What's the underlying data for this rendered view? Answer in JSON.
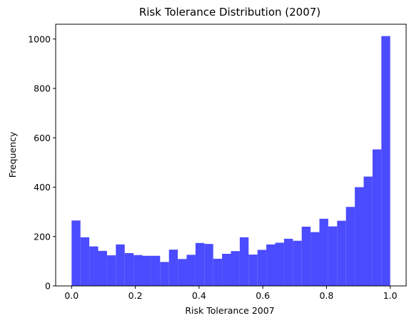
{
  "chart_data": {
    "type": "bar",
    "title": "Risk Tolerance Distribution (2007)",
    "xlabel": "Risk Tolerance 2007",
    "ylabel": "Frequency",
    "xlim": [
      -0.05,
      1.05
    ],
    "ylim": [
      0,
      1060
    ],
    "xticks": [
      0.0,
      0.2,
      0.4,
      0.6,
      0.8,
      1.0
    ],
    "xtick_labels": [
      "0.0",
      "0.2",
      "0.4",
      "0.6",
      "0.8",
      "1.0"
    ],
    "yticks": [
      0,
      200,
      400,
      600,
      800,
      1000
    ],
    "ytick_labels": [
      "0",
      "200",
      "400",
      "600",
      "800",
      "1000"
    ],
    "grid": false,
    "bar_color": "#4B4BFF",
    "bin_start": 0.0,
    "bin_end": 1.0,
    "values": [
      265,
      197,
      160,
      142,
      124,
      168,
      133,
      125,
      122,
      122,
      97,
      147,
      109,
      126,
      174,
      170,
      110,
      130,
      141,
      197,
      127,
      146,
      168,
      175,
      191,
      183,
      240,
      218,
      272,
      241,
      264,
      320,
      400,
      443,
      553,
      1012
    ]
  }
}
